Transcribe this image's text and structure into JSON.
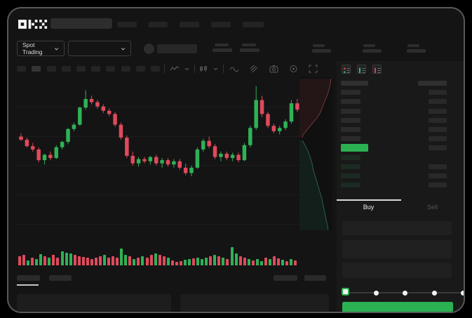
{
  "logo": "OKX",
  "market_selector_label": "Spot Trading",
  "trade_panel": {
    "buy_tab_label": "Buy",
    "sell_tab_label": "Sell"
  },
  "colors": {
    "candle_green": "#2fb156",
    "candle_red": "#df4a5c",
    "buy_button": "#2bb152",
    "orderbook_price_green": "#2bb152",
    "depth_ask_line": "#8a4242",
    "depth_bid_line": "#2f6e5e",
    "frame_bg": "#141414",
    "panel_bg": "#191919"
  },
  "chart_data": [
    {
      "type": "candlestick",
      "title": "",
      "note": "no axis tick labels visible in screenshot; prices normalized 0-100",
      "ylim": [
        0,
        100
      ],
      "grid": "horizontal",
      "candles": [
        [
          50,
          53,
          46,
          47
        ],
        [
          47,
          49,
          40,
          41
        ],
        [
          41,
          44,
          36,
          38
        ],
        [
          38,
          40,
          26,
          28
        ],
        [
          28,
          34,
          24,
          33
        ],
        [
          33,
          36,
          28,
          30
        ],
        [
          30,
          42,
          29,
          40
        ],
        [
          40,
          46,
          38,
          45
        ],
        [
          45,
          58,
          43,
          57
        ],
        [
          57,
          63,
          55,
          61
        ],
        [
          61,
          78,
          60,
          77
        ],
        [
          77,
          93,
          75,
          85
        ],
        [
          85,
          88,
          80,
          82
        ],
        [
          82,
          84,
          76,
          78
        ],
        [
          78,
          80,
          72,
          74
        ],
        [
          74,
          76,
          69,
          71
        ],
        [
          71,
          73,
          59,
          61
        ],
        [
          61,
          63,
          47,
          49
        ],
        [
          49,
          51,
          30,
          32
        ],
        [
          32,
          36,
          23,
          25
        ],
        [
          25,
          31,
          22,
          29
        ],
        [
          29,
          31,
          25,
          27
        ],
        [
          27,
          32,
          24,
          31
        ],
        [
          31,
          33,
          23,
          25
        ],
        [
          25,
          30,
          21,
          28
        ],
        [
          28,
          30,
          22,
          24
        ],
        [
          24,
          29,
          21,
          27
        ],
        [
          27,
          29,
          19,
          21
        ],
        [
          21,
          25,
          14,
          16
        ],
        [
          16,
          23,
          13,
          21
        ],
        [
          21,
          40,
          20,
          38
        ],
        [
          38,
          48,
          36,
          46
        ],
        [
          46,
          50,
          39,
          41
        ],
        [
          41,
          43,
          29,
          31
        ],
        [
          31,
          36,
          27,
          34
        ],
        [
          34,
          36,
          28,
          30
        ],
        [
          30,
          35,
          27,
          33
        ],
        [
          33,
          35,
          26,
          28
        ],
        [
          28,
          44,
          27,
          42
        ],
        [
          42,
          60,
          40,
          58
        ],
        [
          58,
          97,
          56,
          84
        ],
        [
          84,
          88,
          68,
          71
        ],
        [
          71,
          73,
          58,
          60
        ],
        [
          60,
          62,
          53,
          55
        ],
        [
          55,
          60,
          52,
          58
        ],
        [
          58,
          66,
          56,
          64
        ],
        [
          64,
          84,
          62,
          81
        ],
        [
          81,
          85,
          73,
          75
        ]
      ]
    },
    {
      "type": "bar",
      "name": "volume",
      "bars": [
        [
          13,
          "r"
        ],
        [
          15,
          "r"
        ],
        [
          7,
          "g"
        ],
        [
          11,
          "r"
        ],
        [
          9,
          "g"
        ],
        [
          16,
          "g"
        ],
        [
          13,
          "r"
        ],
        [
          11,
          "g"
        ],
        [
          15,
          "r"
        ],
        [
          11,
          "r"
        ],
        [
          20,
          "g"
        ],
        [
          18,
          "g"
        ],
        [
          17,
          "g"
        ],
        [
          15,
          "r"
        ],
        [
          13,
          "r"
        ],
        [
          12,
          "r"
        ],
        [
          11,
          "r"
        ],
        [
          9,
          "r"
        ],
        [
          11,
          "r"
        ],
        [
          13,
          "r"
        ],
        [
          15,
          "g"
        ],
        [
          11,
          "r"
        ],
        [
          13,
          "r"
        ],
        [
          11,
          "r"
        ],
        [
          24,
          "g"
        ],
        [
          15,
          "g"
        ],
        [
          13,
          "r"
        ],
        [
          9,
          "g"
        ],
        [
          11,
          "r"
        ],
        [
          13,
          "g"
        ],
        [
          11,
          "r"
        ],
        [
          15,
          "r"
        ],
        [
          17,
          "g"
        ],
        [
          15,
          "r"
        ],
        [
          13,
          "r"
        ],
        [
          11,
          "g"
        ],
        [
          7,
          "r"
        ],
        [
          5,
          "r"
        ],
        [
          6,
          "r"
        ],
        [
          8,
          "g"
        ],
        [
          9,
          "g"
        ],
        [
          10,
          "r"
        ],
        [
          11,
          "g"
        ],
        [
          9,
          "g"
        ],
        [
          11,
          "g"
        ],
        [
          13,
          "r"
        ],
        [
          15,
          "g"
        ],
        [
          13,
          "r"
        ],
        [
          11,
          "g"
        ],
        [
          9,
          "r"
        ],
        [
          26,
          "g"
        ],
        [
          17,
          "g"
        ],
        [
          13,
          "r"
        ],
        [
          11,
          "r"
        ],
        [
          9,
          "g"
        ],
        [
          7,
          "r"
        ],
        [
          9,
          "g"
        ],
        [
          6,
          "g"
        ],
        [
          11,
          "r"
        ],
        [
          9,
          "g"
        ],
        [
          13,
          "r"
        ],
        [
          10,
          "r"
        ],
        [
          8,
          "g"
        ],
        [
          6,
          "r"
        ],
        [
          9,
          "g"
        ],
        [
          7,
          "r"
        ]
      ]
    },
    {
      "type": "area",
      "name": "depth-profile",
      "ask_curve": [
        [
          45,
          2
        ],
        [
          44,
          10
        ],
        [
          42,
          18
        ],
        [
          40,
          25
        ],
        [
          37,
          32
        ],
        [
          33,
          42
        ],
        [
          30,
          50
        ],
        [
          25,
          58
        ],
        [
          18,
          66
        ],
        [
          10,
          76
        ],
        [
          5,
          82
        ],
        [
          4,
          86
        ]
      ],
      "bid_curve": [
        [
          4,
          90
        ],
        [
          8,
          97
        ],
        [
          12,
          105
        ],
        [
          15,
          113
        ],
        [
          18,
          123
        ],
        [
          20,
          133
        ],
        [
          23,
          143
        ],
        [
          26,
          153
        ],
        [
          29,
          163
        ],
        [
          32,
          173
        ],
        [
          34,
          183
        ],
        [
          36,
          193
        ],
        [
          38,
          203
        ],
        [
          40,
          211
        ],
        [
          41,
          218
        ]
      ]
    }
  ],
  "orderbook": {
    "left_rows": [
      "header",
      "ask",
      "ask",
      "ask",
      "ask",
      "ask",
      "ask",
      "price",
      "bid",
      "bid",
      "bid",
      "bid"
    ],
    "right_rows": [
      "header",
      "bar",
      "bar",
      "bar",
      "bar",
      "bar",
      "bar",
      "bar",
      null,
      "bar",
      "bar",
      "bar"
    ]
  },
  "slider": {
    "stops": 5,
    "active_stop": 0
  }
}
